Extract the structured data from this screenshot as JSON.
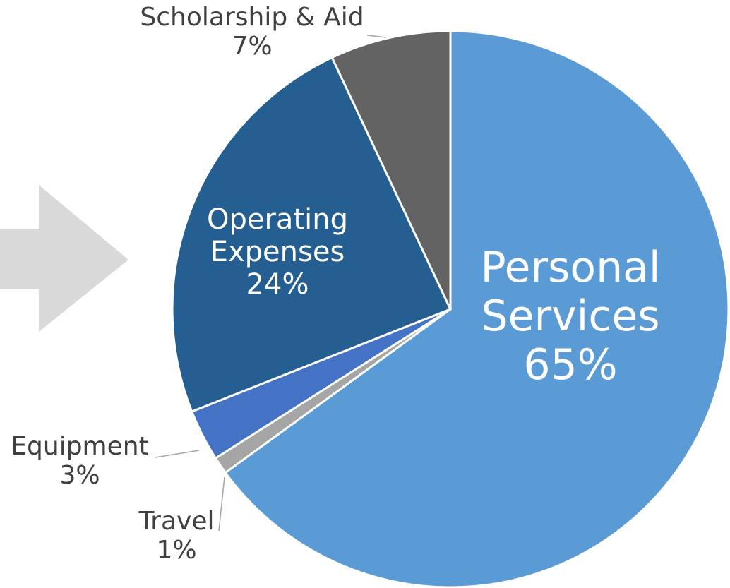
{
  "chart_data": {
    "type": "pie",
    "categories": [
      "Personal Services",
      "Travel",
      "Equipment",
      "Operating Expenses",
      "Scholarship & Aid"
    ],
    "values": [
      65,
      1,
      3,
      24,
      7
    ],
    "value_labels": [
      "65%",
      "1%",
      "3%",
      "24%",
      "7%"
    ],
    "colors": [
      "#5b9bd5",
      "#a5a5a5",
      "#4472c4",
      "#255e91",
      "#636363"
    ]
  }
}
